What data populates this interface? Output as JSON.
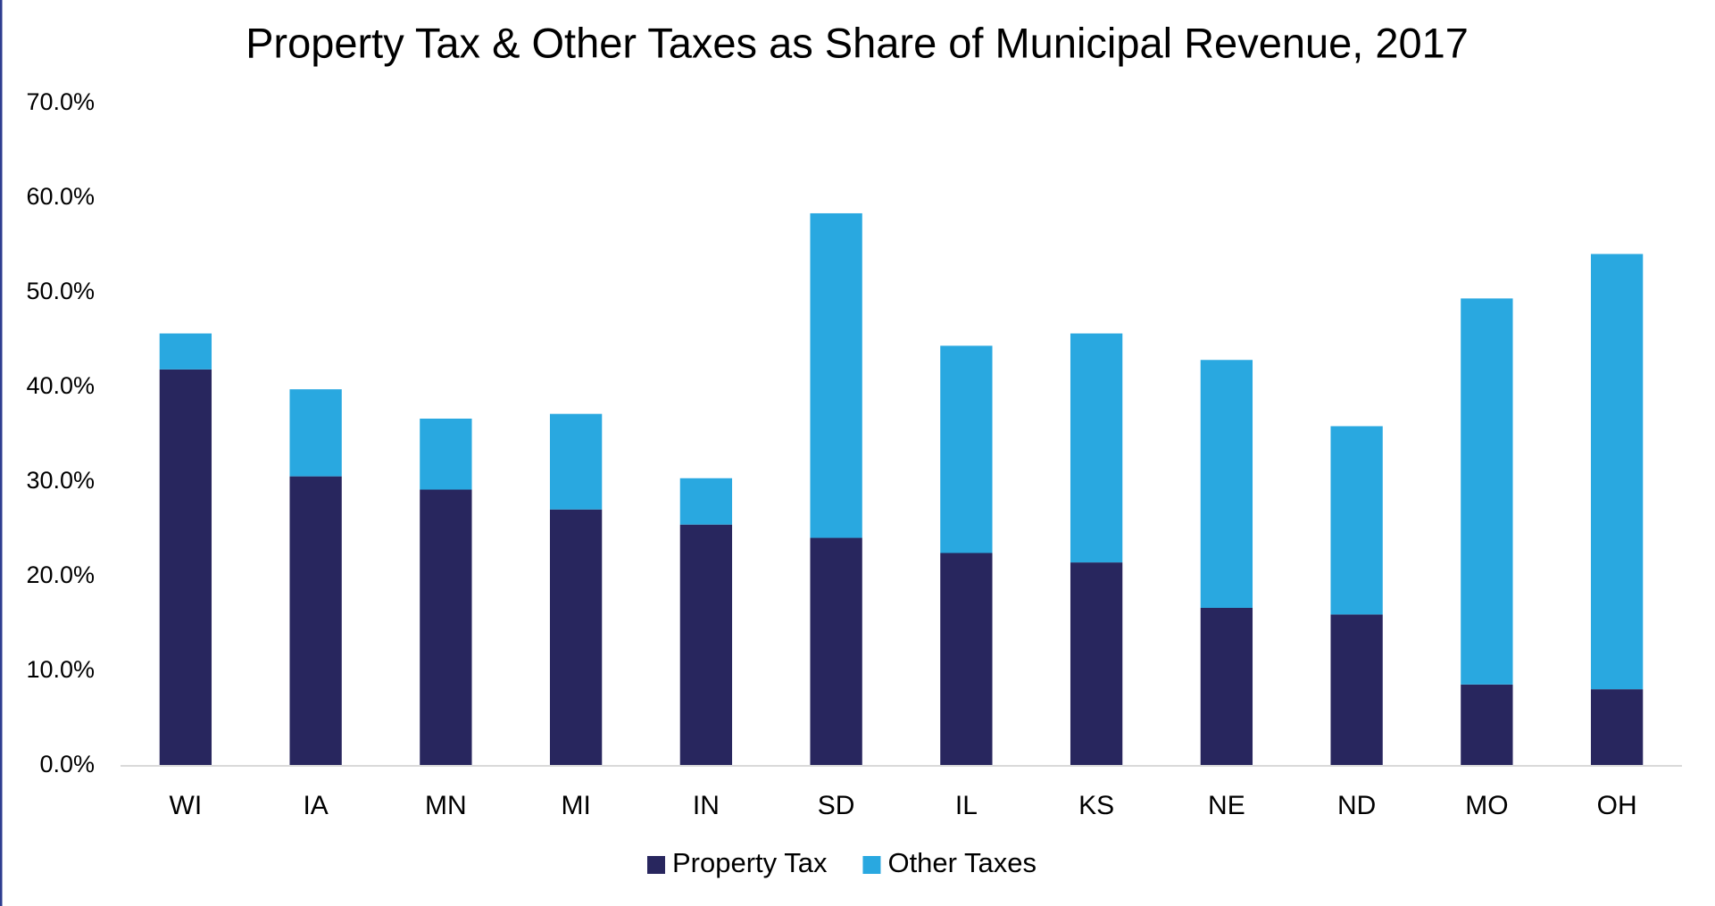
{
  "chart_data": {
    "type": "stacked_bar",
    "title": "Property Tax & Other Taxes as Share of Municipal Revenue, 2017",
    "categories": [
      "WI",
      "IA",
      "MN",
      "MI",
      "IN",
      "SD",
      "IL",
      "KS",
      "NE",
      "ND",
      "MO",
      "OH"
    ],
    "series": [
      {
        "name": "Property Tax",
        "color": "#28265e",
        "values": [
          41.9,
          30.6,
          29.2,
          27.1,
          25.5,
          24.1,
          22.5,
          21.5,
          16.7,
          16.0,
          8.6,
          8.1
        ]
      },
      {
        "name": "Other Taxes",
        "color": "#29a8e0",
        "values": [
          3.8,
          9.2,
          7.5,
          10.1,
          4.9,
          34.3,
          21.9,
          24.2,
          26.2,
          19.9,
          40.8,
          46.0
        ]
      }
    ],
    "ylim": [
      0,
      70
    ],
    "yticks": [
      {
        "value": 0,
        "label": "0.0%"
      },
      {
        "value": 10,
        "label": "10.0%"
      },
      {
        "value": 20,
        "label": "20.0%"
      },
      {
        "value": 30,
        "label": "30.0%"
      },
      {
        "value": 40,
        "label": "40.0%"
      },
      {
        "value": 50,
        "label": "50.0%"
      },
      {
        "value": 60,
        "label": "60.0%"
      },
      {
        "value": 70,
        "label": "70.0%"
      }
    ],
    "grid": false,
    "legend": "bottom"
  }
}
